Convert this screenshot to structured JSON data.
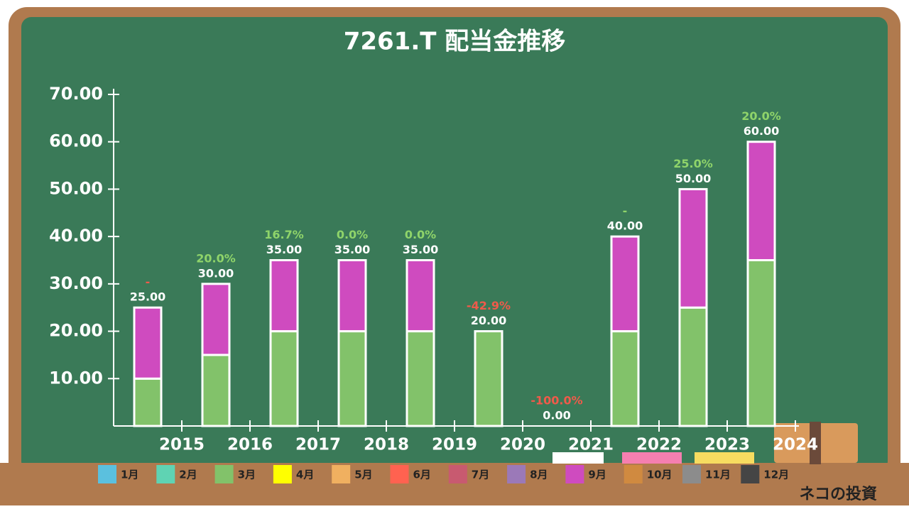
{
  "chart_data": {
    "type": "bar",
    "stacked": true,
    "title": "7261.T 配当金推移",
    "categories": [
      "2015",
      "2016",
      "2017",
      "2018",
      "2019",
      "2020",
      "2021",
      "2022",
      "2023",
      "2024"
    ],
    "series": [
      {
        "name": "3月",
        "color": "#82c26a",
        "values": [
          10,
          15,
          20,
          20,
          20,
          20,
          0,
          20,
          25,
          35
        ]
      },
      {
        "name": "9月",
        "color": "#cf4bbf",
        "values": [
          15,
          15,
          15,
          15,
          15,
          0,
          0,
          20,
          25,
          25
        ]
      }
    ],
    "totals": {
      "values": [
        25,
        30,
        35,
        35,
        35,
        20,
        0,
        40,
        50,
        60
      ],
      "value_labels": [
        "25.00",
        "30.00",
        "35.00",
        "35.00",
        "35.00",
        "20.00",
        "0.00",
        "40.00",
        "50.00",
        "60.00"
      ]
    },
    "growth_labels": [
      "-",
      "20.0%",
      "16.7%",
      "0.0%",
      "0.0%",
      "-42.9%",
      "-100.0%",
      "-",
      "25.0%",
      "20.0%"
    ],
    "growth_colors": [
      "#f05a4a",
      "#8fd46a",
      "#8fd46a",
      "#8fd46a",
      "#8fd46a",
      "#f05a4a",
      "#f05a4a",
      "#8fd46a",
      "#8fd46a",
      "#8fd46a"
    ],
    "ylim": [
      0,
      70
    ],
    "yticks": [
      {
        "value": 10,
        "label": "10.00"
      },
      {
        "value": 20,
        "label": "20.00"
      },
      {
        "value": 30,
        "label": "30.00"
      },
      {
        "value": 40,
        "label": "40.00"
      },
      {
        "value": 50,
        "label": "50.00"
      },
      {
        "value": 60,
        "label": "60.00"
      },
      {
        "value": 70,
        "label": "70.00"
      }
    ],
    "legend": [
      {
        "name": "1月",
        "color": "#5bc0de"
      },
      {
        "name": "2月",
        "color": "#5fd3b3"
      },
      {
        "name": "3月",
        "color": "#82c26a"
      },
      {
        "name": "4月",
        "color": "#ffff00"
      },
      {
        "name": "5月",
        "color": "#f0b060"
      },
      {
        "name": "6月",
        "color": "#ff6250"
      },
      {
        "name": "7月",
        "color": "#c85a70"
      },
      {
        "name": "8月",
        "color": "#9b79b8"
      },
      {
        "name": "9月",
        "color": "#cf4bbf"
      },
      {
        "name": "10月",
        "color": "#d08a40"
      },
      {
        "name": "11月",
        "color": "#8c8c8c"
      },
      {
        "name": "12月",
        "color": "#454545"
      }
    ]
  },
  "brand": "ネコの投資"
}
